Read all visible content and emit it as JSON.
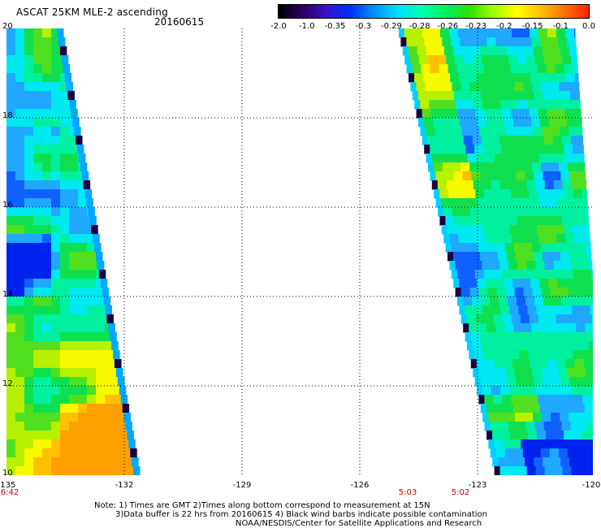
{
  "header": {
    "title": "ASCAT 25KM MLE-2 ascending",
    "date": "20160615"
  },
  "colorbar": {
    "labels": [
      "-2.0",
      "-1.0",
      "-0.35",
      "-0.3",
      "-0.29",
      "-0.28",
      "-0.26",
      "-0.23",
      "-0.2",
      "-0.15",
      "-0.1",
      "0.0"
    ],
    "colors": [
      "#000000",
      "#2d0060",
      "#3a10c8",
      "#0030ff",
      "#0090ff",
      "#00e0ff",
      "#00ffb0",
      "#00f060",
      "#30e000",
      "#a0ff00",
      "#ffff00",
      "#ffc000",
      "#ff7000",
      "#ff2000"
    ]
  },
  "map": {
    "lon_ticks": [
      "-135",
      "-132",
      "-129",
      "-126",
      "-123",
      "-120"
    ],
    "lat_ticks": [
      "20",
      "18",
      "16",
      "14",
      "12",
      "10"
    ],
    "times": {
      "left": "6:42",
      "mid1": "5:03",
      "mid2": "5:02"
    }
  },
  "notes": [
    "Note: 1) Times are GMT 2)Times along bottom correspond to measurement at 15N",
    "3)Data buffer is 22 hrs from 20160615 4) Black wind barbs indicate possible contamination",
    "NOAA/NESDIS/Center for Satellite Applications and Research"
  ]
}
